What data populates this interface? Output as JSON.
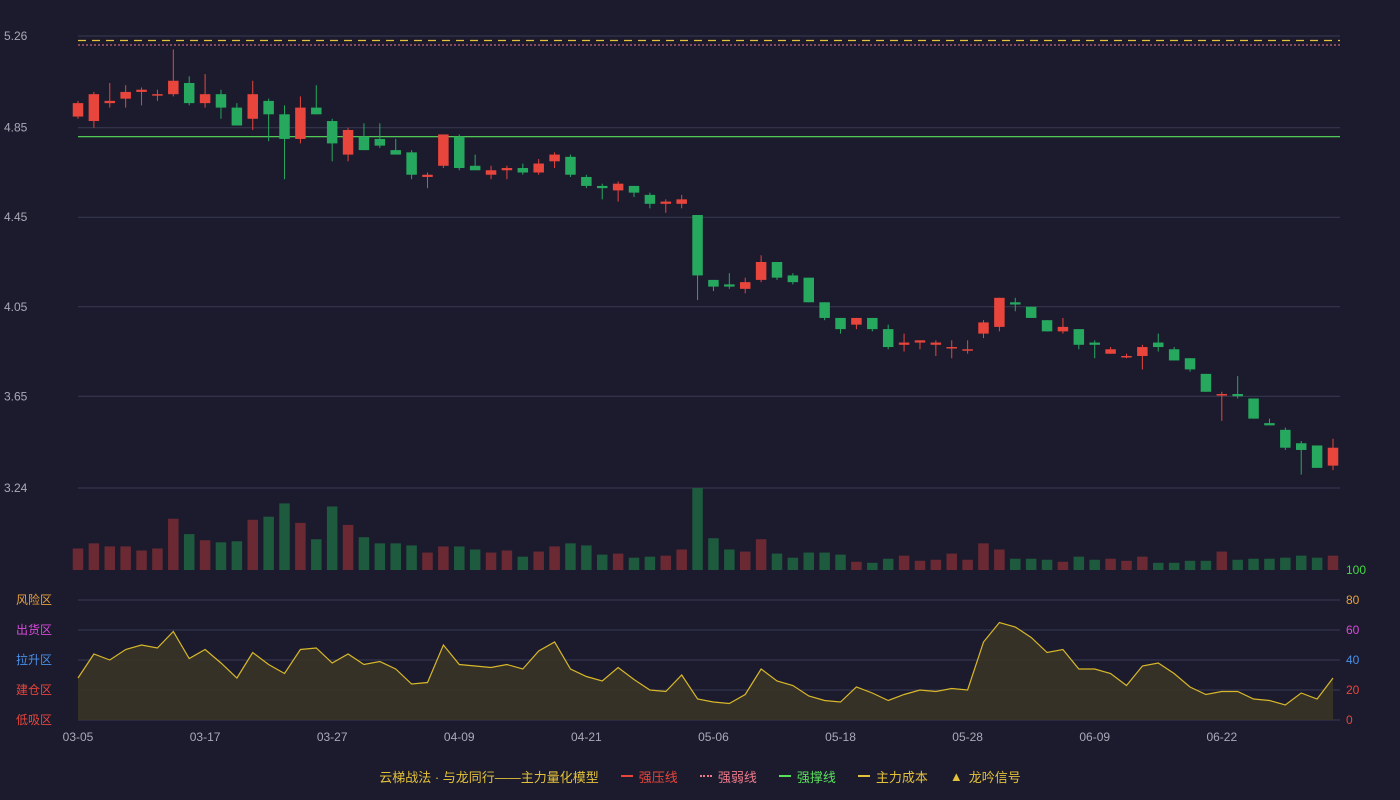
{
  "colors": {
    "background": "#1b1b2d",
    "grid": "#3a3a52",
    "axis_text": "#a9a9b8",
    "up": "#e8453c",
    "down": "#27a85f",
    "vol_up": "#6b2a33",
    "vol_down": "#1e5a3e",
    "pressure_line": "#e8453c",
    "weak_line": "#f07a8a",
    "support_line": "#58e05a",
    "main_cost": "#e3c13a",
    "oscillator": "#d8b72a",
    "tick_100": "#43d943",
    "tick_80": "#e8a23c",
    "tick_60": "#d94ad9",
    "tick_40": "#4a8fe8",
    "tick_20": "#e8453c",
    "tick_0": "#e8453c",
    "legend_title": "#e3c13a"
  },
  "chart_data": [
    {
      "type": "candlestick",
      "title": "",
      "dates_labels": [
        "03-05",
        "03-17",
        "03-27",
        "04-09",
        "04-21",
        "05-06",
        "05-18",
        "05-28",
        "06-09",
        "06-22"
      ],
      "label_indices": [
        0,
        8,
        16,
        24,
        32,
        40,
        48,
        56,
        64,
        72
      ],
      "yticks": [
        "5.26",
        "4.85",
        "4.45",
        "4.05",
        "3.65",
        "3.24"
      ],
      "ylim": [
        3.24,
        5.26
      ],
      "reference_lines": {
        "main_cost": 5.24,
        "weak_line": 5.22,
        "support_line": 4.81
      },
      "ohlc": [
        [
          4.9,
          4.97,
          4.89,
          4.96
        ],
        [
          4.88,
          5.01,
          4.85,
          5.0
        ],
        [
          4.96,
          5.05,
          4.94,
          4.97
        ],
        [
          4.98,
          5.04,
          4.94,
          5.01
        ],
        [
          5.01,
          5.03,
          4.95,
          5.02
        ],
        [
          5.0,
          5.02,
          4.97,
          5.0
        ],
        [
          5.0,
          5.2,
          4.99,
          5.06
        ],
        [
          5.05,
          5.08,
          4.95,
          4.96
        ],
        [
          4.96,
          5.09,
          4.94,
          5.0
        ],
        [
          5.0,
          5.02,
          4.89,
          4.94
        ],
        [
          4.94,
          4.96,
          4.86,
          4.86
        ],
        [
          4.89,
          5.06,
          4.84,
          5.0
        ],
        [
          4.97,
          4.98,
          4.79,
          4.91
        ],
        [
          4.91,
          4.95,
          4.62,
          4.8
        ],
        [
          4.8,
          4.99,
          4.78,
          4.94
        ],
        [
          4.94,
          5.04,
          4.91,
          4.91
        ],
        [
          4.88,
          4.89,
          4.7,
          4.78
        ],
        [
          4.73,
          4.85,
          4.7,
          4.84
        ],
        [
          4.81,
          4.87,
          4.75,
          4.75
        ],
        [
          4.8,
          4.87,
          4.76,
          4.77
        ],
        [
          4.75,
          4.8,
          4.73,
          4.73
        ],
        [
          4.74,
          4.75,
          4.62,
          4.64
        ],
        [
          4.63,
          4.65,
          4.58,
          4.64
        ],
        [
          4.68,
          4.82,
          4.67,
          4.82
        ],
        [
          4.81,
          4.82,
          4.66,
          4.67
        ],
        [
          4.68,
          4.73,
          4.66,
          4.66
        ],
        [
          4.64,
          4.68,
          4.62,
          4.66
        ],
        [
          4.66,
          4.68,
          4.62,
          4.67
        ],
        [
          4.67,
          4.69,
          4.64,
          4.65
        ],
        [
          4.65,
          4.71,
          4.64,
          4.69
        ],
        [
          4.7,
          4.74,
          4.67,
          4.73
        ],
        [
          4.72,
          4.73,
          4.63,
          4.64
        ],
        [
          4.63,
          4.64,
          4.58,
          4.59
        ],
        [
          4.59,
          4.6,
          4.53,
          4.58
        ],
        [
          4.57,
          4.61,
          4.52,
          4.6
        ],
        [
          4.59,
          4.59,
          4.54,
          4.56
        ],
        [
          4.55,
          4.56,
          4.49,
          4.51
        ],
        [
          4.51,
          4.53,
          4.47,
          4.52
        ],
        [
          4.51,
          4.55,
          4.49,
          4.53
        ],
        [
          4.46,
          4.46,
          4.08,
          4.19
        ],
        [
          4.17,
          4.17,
          4.12,
          4.14
        ],
        [
          4.15,
          4.2,
          4.13,
          4.14
        ],
        [
          4.13,
          4.18,
          4.11,
          4.16
        ],
        [
          4.17,
          4.28,
          4.16,
          4.25
        ],
        [
          4.25,
          4.25,
          4.17,
          4.18
        ],
        [
          4.19,
          4.2,
          4.15,
          4.16
        ],
        [
          4.18,
          4.18,
          4.07,
          4.07
        ],
        [
          4.07,
          4.07,
          3.99,
          4.0
        ],
        [
          4.0,
          4.0,
          3.93,
          3.95
        ],
        [
          3.97,
          4.0,
          3.95,
          4.0
        ],
        [
          4.0,
          4.0,
          3.94,
          3.95
        ],
        [
          3.95,
          3.97,
          3.86,
          3.87
        ],
        [
          3.88,
          3.93,
          3.85,
          3.89
        ],
        [
          3.89,
          3.9,
          3.86,
          3.9
        ],
        [
          3.88,
          3.9,
          3.83,
          3.89
        ],
        [
          3.87,
          3.9,
          3.82,
          3.87
        ],
        [
          3.86,
          3.9,
          3.84,
          3.86
        ],
        [
          3.93,
          3.99,
          3.91,
          3.98
        ],
        [
          3.96,
          4.09,
          3.94,
          4.09
        ],
        [
          4.07,
          4.09,
          4.03,
          4.06
        ],
        [
          4.05,
          4.05,
          4.0,
          4.0
        ],
        [
          3.99,
          3.99,
          3.94,
          3.94
        ],
        [
          3.94,
          4.0,
          3.93,
          3.96
        ],
        [
          3.95,
          3.95,
          3.86,
          3.88
        ],
        [
          3.89,
          3.9,
          3.82,
          3.88
        ],
        [
          3.84,
          3.87,
          3.84,
          3.86
        ],
        [
          3.83,
          3.84,
          3.82,
          3.83
        ],
        [
          3.83,
          3.88,
          3.77,
          3.87
        ],
        [
          3.89,
          3.93,
          3.85,
          3.87
        ],
        [
          3.86,
          3.87,
          3.81,
          3.81
        ],
        [
          3.82,
          3.82,
          3.76,
          3.77
        ],
        [
          3.75,
          3.75,
          3.67,
          3.67
        ],
        [
          3.66,
          3.67,
          3.54,
          3.66
        ],
        [
          3.66,
          3.74,
          3.64,
          3.65
        ],
        [
          3.64,
          3.64,
          3.55,
          3.55
        ],
        [
          3.53,
          3.55,
          3.52,
          3.52
        ],
        [
          3.5,
          3.51,
          3.41,
          3.42
        ],
        [
          3.44,
          3.45,
          3.3,
          3.41
        ],
        [
          3.43,
          3.43,
          3.33,
          3.33
        ],
        [
          3.34,
          3.46,
          3.32,
          3.42
        ]
      ],
      "volume": [
        21,
        26,
        23,
        23,
        19,
        21,
        50,
        35,
        29,
        27,
        28,
        49,
        52,
        65,
        46,
        30,
        62,
        44,
        32,
        26,
        26,
        24,
        17,
        23,
        23,
        20,
        17,
        19,
        13,
        18,
        23,
        26,
        24,
        15,
        16,
        12,
        13,
        14,
        20,
        80,
        31,
        20,
        18,
        30,
        16,
        12,
        17,
        17,
        15,
        8,
        7,
        11,
        14,
        9,
        10,
        16,
        10,
        26,
        20,
        11,
        11,
        10,
        8,
        13,
        10,
        11,
        9,
        13,
        7,
        7,
        9,
        9,
        18,
        10,
        11,
        11,
        12,
        14,
        12,
        14
      ]
    },
    {
      "type": "line",
      "title": "",
      "ylim": [
        0,
        100
      ],
      "yticks": [
        "100",
        "80",
        "60",
        "40",
        "20",
        "0"
      ],
      "zones": [
        "风险区",
        "出货区",
        "拉升区",
        "建仓区",
        "低吸区"
      ],
      "values": [
        28,
        44,
        40,
        47,
        50,
        48,
        59,
        41,
        47,
        38,
        28,
        45,
        37,
        31,
        47,
        48,
        38,
        44,
        37,
        39,
        34,
        24,
        25,
        50,
        37,
        36,
        35,
        37,
        34,
        46,
        52,
        34,
        29,
        26,
        35,
        27,
        20,
        19,
        30,
        14,
        12,
        11,
        17,
        34,
        26,
        23,
        16,
        13,
        12,
        22,
        18,
        13,
        17,
        20,
        19,
        21,
        20,
        52,
        65,
        62,
        55,
        45,
        47,
        34,
        34,
        31,
        23,
        36,
        38,
        31,
        22,
        17,
        19,
        19,
        14,
        13,
        10,
        18,
        14,
        28
      ]
    }
  ],
  "legend": {
    "title": "云梯战法 · 与龙同行——主力量化模型",
    "items": [
      {
        "label": "强压线",
        "symbol": "solid-line"
      },
      {
        "label": "强弱线",
        "symbol": "dotted-line"
      },
      {
        "label": "强撑线",
        "symbol": "solid-line"
      },
      {
        "label": "主力成本",
        "symbol": "dashed-line"
      },
      {
        "label": "龙吟信号",
        "symbol": "triangle-icon"
      }
    ]
  }
}
